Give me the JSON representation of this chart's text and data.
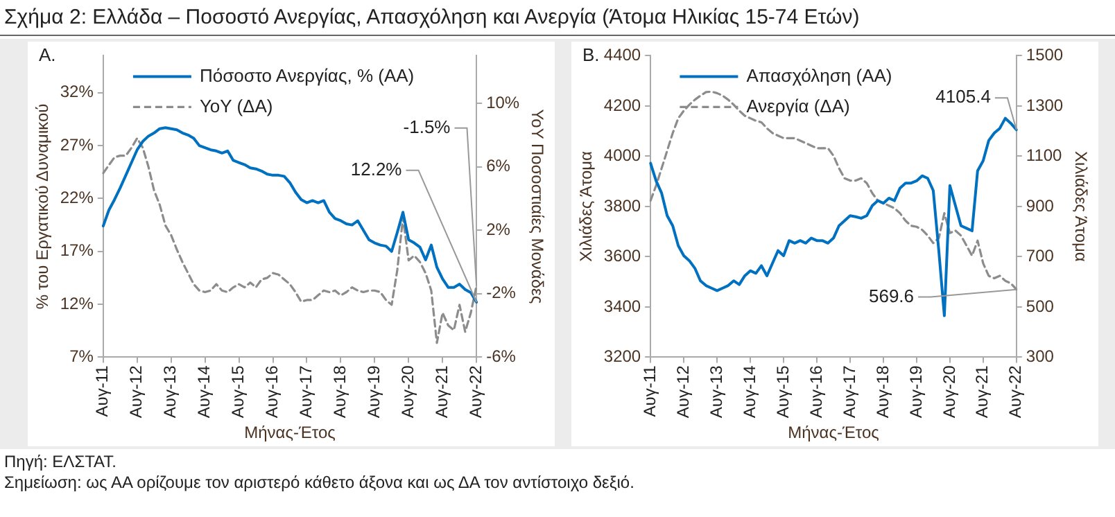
{
  "chart_data": [
    {
      "type": "line",
      "title": "Σχήμα 2: Ελλάδα – Ποσοστό Ανεργίας, Απασχόληση και Ανεργία (Άτομα Ηλικίας 15-74 Ετών)",
      "subtitle": "A.",
      "xlabel": "Μήνας-Έτος",
      "ylabel": "% του Εργατικού Δυναμικού",
      "y2label": "YoY Ποσοστιαίες Μονάδες",
      "categories": [
        "Αυγ-11",
        null,
        null,
        null,
        null,
        null,
        "Αυγ-12",
        null,
        null,
        null,
        null,
        null,
        "Αυγ-13",
        null,
        null,
        null,
        null,
        null,
        "Αυγ-14",
        null,
        null,
        null,
        null,
        null,
        "Αυγ-15",
        null,
        null,
        null,
        null,
        null,
        "Αυγ-16",
        null,
        null,
        null,
        null,
        null,
        "Αυγ-17",
        null,
        null,
        null,
        null,
        null,
        "Αυγ-18",
        null,
        null,
        null,
        null,
        null,
        "Αυγ-19",
        null,
        null,
        null,
        null,
        null,
        "Αυγ-20",
        null,
        null,
        null,
        null,
        null,
        "Αυγ-21",
        null,
        null,
        null,
        null,
        null,
        "Αυγ-22"
      ],
      "series": [
        {
          "name": "Πόσοστο Ανεργίας, % (ΑΑ)",
          "color": "#0070c0",
          "line_style": "solid",
          "values": [
            19.4,
            20.9,
            21.9,
            23.0,
            24.2,
            25.4,
            26.6,
            27.4,
            27.9,
            28.2,
            28.6,
            28.7,
            28.6,
            28.5,
            28.2,
            28.0,
            27.7,
            27.0,
            26.8,
            26.6,
            26.5,
            26.3,
            26.5,
            25.6,
            25.4,
            25.2,
            24.9,
            24.8,
            24.6,
            24.3,
            24.2,
            24.2,
            24.1,
            23.5,
            22.6,
            21.9,
            21.6,
            21.8,
            21.6,
            21.8,
            20.7,
            20.1,
            19.9,
            19.6,
            19.5,
            19.9,
            19.0,
            18.1,
            17.8,
            17.6,
            17.5,
            17.0,
            18.8,
            20.7,
            18.1,
            17.8,
            17.4,
            16.2,
            17.6,
            15.5,
            14.4,
            13.6,
            13.6,
            13.9,
            13.4,
            13.1,
            12.2
          ]
        },
        {
          "name": "YoY (ΔΑ)",
          "color": "#8c8c8c",
          "line_style": "dashed",
          "axis": "y2",
          "values": [
            5.6,
            6.1,
            6.6,
            6.7,
            6.7,
            7.2,
            7.8,
            7.2,
            6.0,
            4.5,
            3.6,
            2.3,
            1.7,
            0.8,
            0.0,
            -0.7,
            -1.4,
            -1.8,
            -1.9,
            -1.8,
            -1.4,
            -1.8,
            -1.9,
            -1.6,
            -1.4,
            -1.6,
            -1.3,
            -1.6,
            -1.1,
            -1.0,
            -0.7,
            -0.8,
            -1.1,
            -1.4,
            -1.9,
            -2.5,
            -2.4,
            -2.4,
            -2.1,
            -1.8,
            -1.9,
            -1.8,
            -2.1,
            -1.9,
            -1.6,
            -1.8,
            -1.9,
            -1.8,
            -1.8,
            -1.9,
            -2.4,
            -2.7,
            -0.5,
            2.8,
            0.1,
            0.4,
            0.0,
            -0.7,
            -1.8,
            -5.1,
            -3.2,
            -4.0,
            -4.3,
            -2.7,
            -4.4,
            -3.2,
            -1.5
          ]
        }
      ],
      "ylim": [
        7,
        35.5
      ],
      "yticks": [
        {
          "value": 7,
          "label": "7%"
        },
        {
          "value": 12,
          "label": "12%"
        },
        {
          "value": 17,
          "label": "17%"
        },
        {
          "value": 22,
          "label": "22%"
        },
        {
          "value": 27,
          "label": "27%"
        },
        {
          "value": 32,
          "label": "32%"
        }
      ],
      "y2lim": [
        -6,
        13
      ],
      "y2ticks": [
        {
          "value": -6,
          "label": "-6%"
        },
        {
          "value": -2,
          "label": "-2%"
        },
        {
          "value": 2,
          "label": "2%"
        },
        {
          "value": 6,
          "label": "6%"
        },
        {
          "value": 10,
          "label": "10%"
        }
      ],
      "legend": "top",
      "marker": "none",
      "annotations": [
        {
          "text": "12.2%",
          "x": "Αυγ-22",
          "y": 12.2
        },
        "-1.5%",
        "Πηγή: ΕΛΣΤΑΤ.",
        "Σημείωση: ως ΑΑ ορίζουμε τον αριστερό κάθετο άξονα και ως ΔΑ τον αντίστοιχο δεξιό."
      ]
    },
    {
      "type": "line",
      "subtitle": "B.",
      "xlabel": "Μήνας-Έτος",
      "ylabel": "Χιλιάδες Άτομα",
      "y2label": "Χιλιάδες Άτομα",
      "categories": [
        "Αυγ-11",
        null,
        null,
        null,
        null,
        null,
        "Αυγ-12",
        null,
        null,
        null,
        null,
        null,
        "Αυγ-13",
        null,
        null,
        null,
        null,
        null,
        "Αυγ-14",
        null,
        null,
        null,
        null,
        null,
        "Αυγ-15",
        null,
        null,
        null,
        null,
        null,
        "Αυγ-16",
        null,
        null,
        null,
        null,
        null,
        "Αυγ-17",
        null,
        null,
        null,
        null,
        null,
        "Αυγ-18",
        null,
        null,
        null,
        null,
        null,
        "Αυγ-19",
        null,
        null,
        null,
        null,
        null,
        "Αυγ-20",
        null,
        null,
        null,
        null,
        null,
        "Αυγ-21",
        null,
        null,
        null,
        null,
        null,
        "Αυγ-22"
      ],
      "series": [
        {
          "name": "Απασχόληση (ΑΑ)",
          "color": "#0070c0",
          "line_style": "solid",
          "values": [
            3972,
            3902,
            3853,
            3763,
            3723,
            3644,
            3604,
            3584,
            3554,
            3504,
            3485,
            3475,
            3465,
            3475,
            3485,
            3504,
            3489,
            3524,
            3544,
            3534,
            3564,
            3524,
            3574,
            3624,
            3604,
            3664,
            3654,
            3664,
            3654,
            3674,
            3664,
            3664,
            3654,
            3674,
            3723,
            3743,
            3763,
            3759,
            3753,
            3763,
            3803,
            3823,
            3813,
            3833,
            3823,
            3873,
            3893,
            3893,
            3902,
            3922,
            3912,
            3863,
            3624,
            3365,
            3883,
            3803,
            3723,
            3713,
            3703,
            3942,
            3982,
            4062,
            4092,
            4111,
            4151,
            4131,
            4105.4
          ]
        },
        {
          "name": "Ανεργία (ΔΑ)",
          "color": "#8c8c8c",
          "line_style": "dashed",
          "axis": "y2",
          "values": [
            923,
            983,
            1052,
            1122,
            1192,
            1251,
            1281,
            1305,
            1325,
            1341,
            1355,
            1357,
            1351,
            1341,
            1325,
            1305,
            1281,
            1261,
            1251,
            1241,
            1235,
            1211,
            1192,
            1182,
            1172,
            1172,
            1172,
            1162,
            1152,
            1142,
            1132,
            1132,
            1132,
            1102,
            1052,
            1012,
            1003,
            1003,
            1012,
            993,
            953,
            923,
            913,
            903,
            893,
            873,
            843,
            823,
            819,
            807,
            784,
            754,
            774,
            873,
            794,
            804,
            784,
            744,
            704,
            764,
            674,
            624,
            614,
            624,
            604,
            594,
            569.6
          ]
        }
      ],
      "ylim": [
        3200,
        4400
      ],
      "yticks": [
        3200,
        3400,
        3600,
        3800,
        4000,
        4200,
        4400
      ],
      "y2lim": [
        300,
        1500
      ],
      "y2ticks": [
        300,
        500,
        700,
        900,
        1100,
        1300,
        1500
      ],
      "legend": "top",
      "marker": "none",
      "annotations": [
        {
          "text": "4105.4",
          "x": "Αυγ-22",
          "y": 4105.4
        },
        {
          "text": "569.6",
          "x": "Αυγ-22"
        }
      ]
    }
  ]
}
